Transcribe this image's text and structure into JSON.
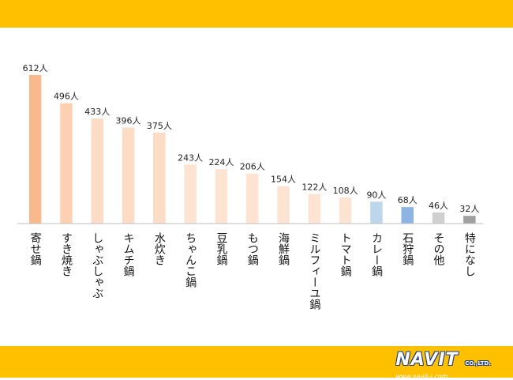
{
  "colors": {
    "band": "#ffc000",
    "logo_outline": "#1a3f8a"
  },
  "logo": {
    "name": "NAVIT",
    "suffix": "CO.,LTD.",
    "url": "www.navit-j.com"
  },
  "chart_data": {
    "type": "bar",
    "title": "",
    "xlabel": "",
    "ylabel": "",
    "unit": "人",
    "ylim": [
      0,
      612
    ],
    "grid": false,
    "legend": "none",
    "categories": [
      "寄せ鍋",
      "すき焼き",
      "しゃぶしゃぶ",
      "キムチ鍋",
      "水炊き",
      "ちゃんこ鍋",
      "豆乳鍋",
      "もつ鍋",
      "海鮮鍋",
      "ミルフィーユ鍋",
      "トマト鍋",
      "カレー鍋",
      "石狩鍋",
      "その他",
      "特になし"
    ],
    "values": [
      612,
      496,
      433,
      396,
      375,
      243,
      224,
      206,
      154,
      122,
      108,
      90,
      68,
      46,
      32
    ],
    "value_labels": [
      "612人",
      "496人",
      "433人",
      "396人",
      "375人",
      "243人",
      "224人",
      "206人",
      "154人",
      "122人",
      "108人",
      "90人",
      "68人",
      "46人",
      "32人"
    ],
    "bar_colors": [
      "#f9b98c",
      "#fcd0b0",
      "#fcdcc4",
      "#fcdcc4",
      "#fcdcc4",
      "#fde4d2",
      "#fde4d2",
      "#fde4d2",
      "#fde4d2",
      "#fde4d2",
      "#fde4d2",
      "#bcd6ee",
      "#8eb4e3",
      "#d0d0d0",
      "#a0a0a0"
    ]
  }
}
